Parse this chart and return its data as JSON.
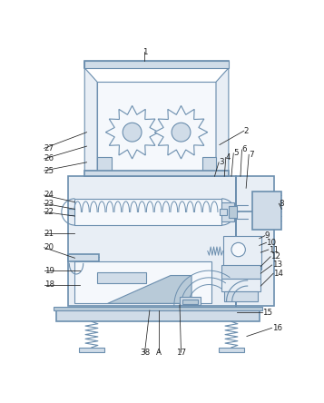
{
  "bg_color": "#ffffff",
  "lc": "#6b8eae",
  "lc_dark": "#4a6a88",
  "lc_gray": "#aabbcc",
  "label_color": "#222222",
  "fill_light": "#e8eef5",
  "fill_mid": "#d0dce8",
  "fill_dark": "#b8cad8",
  "fill_white": "#f5f8fc"
}
